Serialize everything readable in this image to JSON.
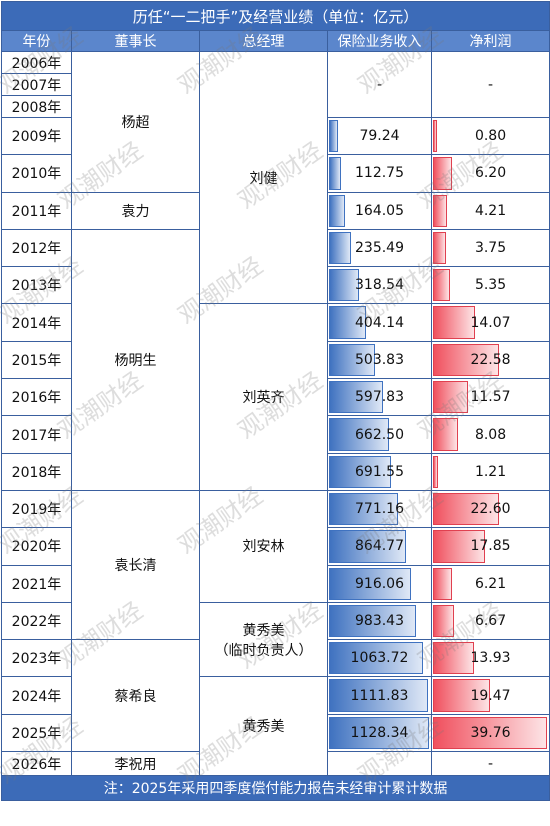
{
  "title": "历任“一二把手”及经营业绩（单位：亿元）",
  "watermark": "观潮财经",
  "table": {
    "header": [
      "年份",
      "董事长",
      "总经理",
      "保险业务收入",
      "净利润"
    ],
    "years": [
      "2006年",
      "2007年",
      "2008年",
      "2009年",
      "2010年",
      "2011年",
      "2012年",
      "2013年",
      "2014年",
      "2015年",
      "2016年",
      "2017年",
      "2018年",
      "2019年",
      "2020年",
      "2021年",
      "2022年",
      "2023年",
      "2024年",
      "2025年",
      "2026年"
    ],
    "chairmen": [
      "杨超",
      "袁力",
      "杨明生",
      "袁长清",
      "蔡希良",
      "李祝用"
    ],
    "managers": [
      [
        "刘健"
      ],
      [
        "刘英齐"
      ],
      [
        "刘安林"
      ],
      [
        "黄秀美",
        "（临时负责人）"
      ],
      [
        "黄秀美"
      ]
    ],
    "revenue": [
      "-",
      null,
      null,
      "79.24",
      "112.75",
      "164.05",
      "235.49",
      "318.54",
      "404.14",
      "503.83",
      "597.83",
      "662.50",
      "691.55",
      "771.16",
      "864.77",
      "916.06",
      "983.43",
      "1063.72",
      "1111.83",
      "1128.34",
      null
    ],
    "profit": [
      "-",
      null,
      null,
      "0.80",
      "6.20",
      "4.21",
      "3.75",
      "5.35",
      "14.07",
      "22.58",
      "11.57",
      "8.08",
      "1.21",
      "22.60",
      "17.85",
      "6.21",
      "6.67",
      "13.93",
      "19.47",
      "39.76",
      "-"
    ]
  },
  "footnote": "注：2025年采用四季度偿付能力报告未经审计累计数据"
}
